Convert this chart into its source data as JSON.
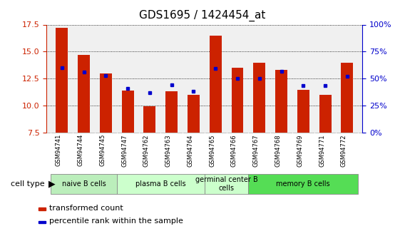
{
  "title": "GDS1695 / 1424454_at",
  "samples": [
    "GSM94741",
    "GSM94744",
    "GSM94745",
    "GSM94747",
    "GSM94762",
    "GSM94763",
    "GSM94764",
    "GSM94765",
    "GSM94766",
    "GSM94767",
    "GSM94768",
    "GSM94769",
    "GSM94771",
    "GSM94772"
  ],
  "transformed_count": [
    17.2,
    14.7,
    13.0,
    11.4,
    9.95,
    11.35,
    11.0,
    16.5,
    13.5,
    14.0,
    13.3,
    11.5,
    11.0,
    14.0
  ],
  "percentile_rank_left": [
    13.5,
    13.1,
    12.8,
    11.6,
    11.2,
    11.95,
    11.35,
    13.45,
    12.5,
    12.55,
    13.2,
    11.9,
    11.85,
    12.7
  ],
  "ylim_left": [
    7.5,
    17.5
  ],
  "ylim_right": [
    0,
    100
  ],
  "yticks_left": [
    7.5,
    10.0,
    12.5,
    15.0,
    17.5
  ],
  "yticks_right": [
    0,
    25,
    50,
    75,
    100
  ],
  "groups": [
    {
      "label": "naive B cells",
      "start": 0,
      "end": 3,
      "color": "#aaddaa"
    },
    {
      "label": "plasma B cells",
      "start": 3,
      "end": 7,
      "color": "#ccffcc"
    },
    {
      "label": "germinal center B\ncells",
      "start": 7,
      "end": 9,
      "color": "#ccffcc"
    },
    {
      "label": "memory B cells",
      "start": 9,
      "end": 14,
      "color": "#66dd66"
    }
  ],
  "bar_color": "#cc2200",
  "dot_color": "#0000cc",
  "bar_width": 0.55,
  "plot_bg": "#f0f0f0",
  "tick_color_left": "#cc2200",
  "tick_color_right": "#0000cc",
  "label_fontsize": 7,
  "title_fontsize": 11
}
